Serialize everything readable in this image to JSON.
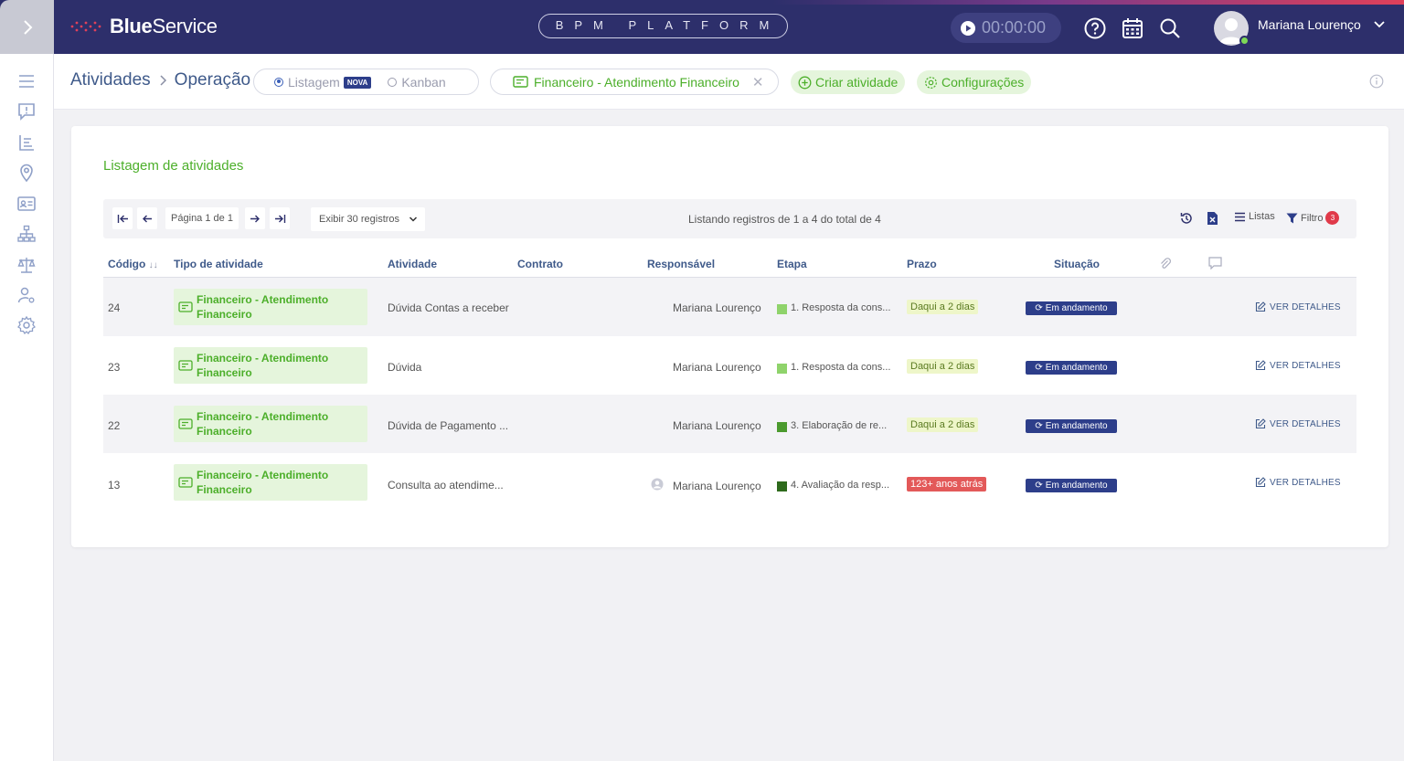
{
  "topbar": {
    "brand_bold": "Blue",
    "brand_regular": "Service",
    "platform": "BPM PLATFORM",
    "timer": "00:00:00",
    "user_name": "Mariana Lourenço",
    "colors": {
      "bg": "#2d2f6b",
      "accent_end": "#e0405a"
    }
  },
  "sidebar": {
    "icons": [
      "menu-icon",
      "alert-message-icon",
      "list-chart-icon",
      "location-pin-icon",
      "id-card-icon",
      "org-chart-icon",
      "scale-icon",
      "user-settings-icon",
      "gear-icon"
    ]
  },
  "subheader": {
    "breadcrumb_root": "Atividades",
    "breadcrumb_current": "Operação",
    "view_listagem": "Listagem",
    "view_new_badge": "NOVA",
    "view_kanban": "Kanban",
    "filter_chip": "Financeiro - Atendimento Financeiro",
    "create_label": "Criar atividade",
    "config_label": "Configurações"
  },
  "card": {
    "title": "Listagem de atividades",
    "page_label": "Página 1 de 1",
    "per_page": "Exibir 30 registros",
    "listing_info": "Listando registros de 1 a 4 do total de 4",
    "lists_label": "Listas",
    "filter_label": "Filtro",
    "filter_count": "3"
  },
  "table": {
    "headers": {
      "code": "Código",
      "type": "Tipo de atividade",
      "activity": "Atividade",
      "contract": "Contrato",
      "owner": "Responsável",
      "stage": "Etapa",
      "deadline": "Prazo",
      "status": "Situação"
    },
    "details_label": "VER DETALHES",
    "rows": [
      {
        "code": "24",
        "type": "Financeiro - Atendimento Financeiro",
        "activity": "Dúvida Contas a receber",
        "owner": "Mariana Lourenço",
        "stage": "1. Resposta da cons...",
        "stage_color": "#8fd36b",
        "deadline": "Daqui a 2 dias",
        "status": "Em andamento"
      },
      {
        "code": "23",
        "type": "Financeiro - Atendimento Financeiro",
        "activity": "Dúvida",
        "owner": "Mariana Lourenço",
        "stage": "1. Resposta da cons...",
        "stage_color": "#8fd36b",
        "deadline": "Daqui a 2 dias",
        "status": "Em andamento"
      },
      {
        "code": "22",
        "type": "Financeiro - Atendimento Financeiro",
        "activity": "Dúvida de Pagamento ...",
        "owner": "Mariana Lourenço",
        "stage": "3. Elaboração de re...",
        "stage_color": "#4b9a2e",
        "deadline": "Daqui a 2 dias",
        "status": "Em andamento"
      },
      {
        "code": "13",
        "type": "Financeiro - Atendimento Financeiro",
        "activity": "Consulta ao atendime...",
        "owner": "Mariana Lourenço",
        "stage": "4. Avaliação da resp...",
        "stage_color": "#2e6a1c",
        "deadline": "123+ anos atrás",
        "status": "Em andamento"
      }
    ]
  }
}
